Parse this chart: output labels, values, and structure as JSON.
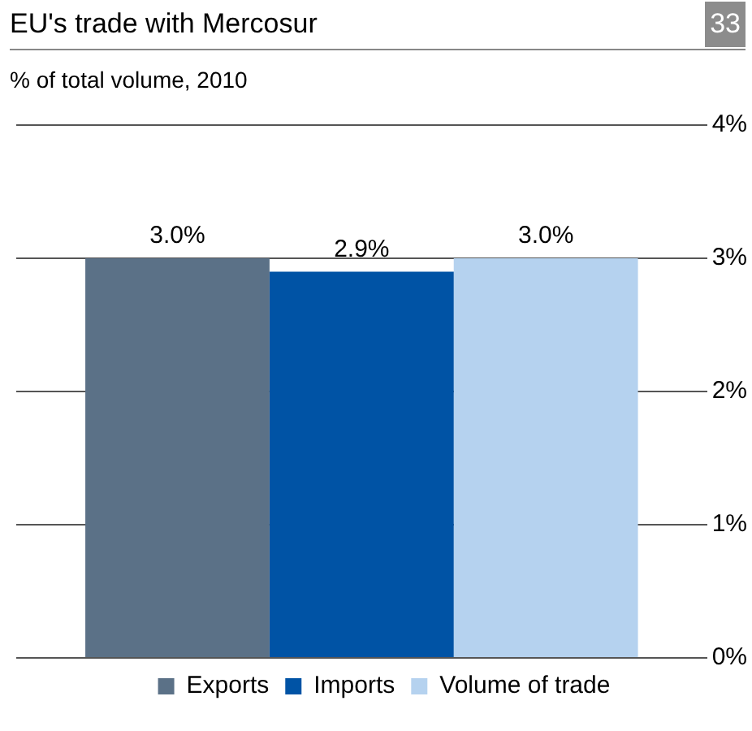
{
  "chart_data": {
    "type": "bar",
    "title": "EU's trade with Mercosur",
    "subtitle": "% of total volume, 2010",
    "annotations": [
      "33"
    ],
    "categories": [
      null
    ],
    "series": [
      {
        "name": "Exports",
        "color": "#5b7187",
        "values": [
          3.0
        ],
        "value_labels": [
          "3.0%"
        ]
      },
      {
        "name": "Imports",
        "color": "#0053a5",
        "values": [
          2.9
        ],
        "value_labels": [
          "2.9%"
        ]
      },
      {
        "name": "Volume of trade",
        "color": "#b5d2ef",
        "values": [
          3.0
        ],
        "value_labels": [
          "3.0%"
        ]
      }
    ],
    "ylim": [
      0,
      4
    ],
    "yticks": [
      {
        "value": 0,
        "label": "0%"
      },
      {
        "value": 1,
        "label": "1%"
      },
      {
        "value": 2,
        "label": "2%"
      },
      {
        "value": 3,
        "label": "3%"
      },
      {
        "value": 4,
        "label": "4%"
      }
    ],
    "grid": "y",
    "legend": "bottom"
  }
}
